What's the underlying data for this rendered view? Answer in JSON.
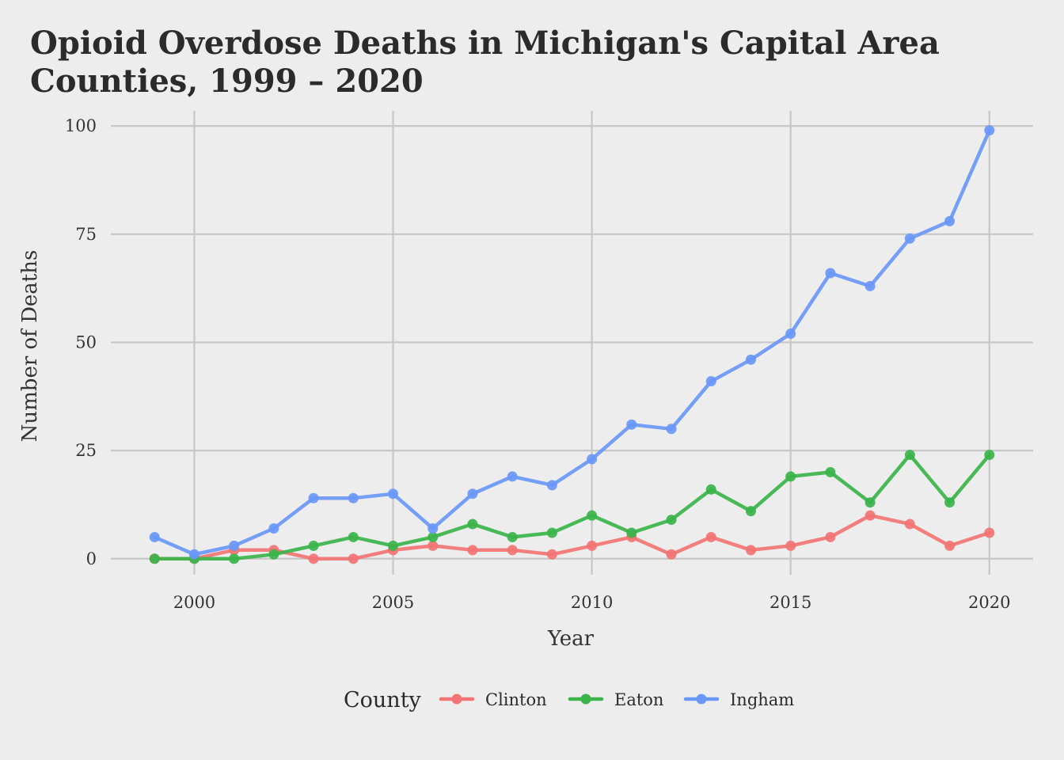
{
  "chart_data": {
    "type": "line",
    "title_lines": [
      "Opioid Overdose Deaths in Michigan's Capital Area",
      "Counties, 1999 – 2020"
    ],
    "xlabel": "Year",
    "ylabel": "Number of Deaths",
    "x": [
      1999,
      2000,
      2001,
      2002,
      2003,
      2004,
      2005,
      2006,
      2007,
      2008,
      2009,
      2010,
      2011,
      2012,
      2013,
      2014,
      2015,
      2016,
      2017,
      2018,
      2019,
      2020
    ],
    "xlim": [
      1997.9,
      2021.1
    ],
    "ylim": [
      -3.7,
      103.5
    ],
    "x_ticks": [
      2000,
      2005,
      2010,
      2015,
      2020
    ],
    "x_tick_labels": [
      "2000",
      "2005",
      "2010",
      "2015",
      "2020"
    ],
    "y_ticks": [
      0,
      25,
      50,
      75,
      100
    ],
    "y_tick_labels": [
      "0",
      "25",
      "50",
      "75",
      "100"
    ],
    "grid": true,
    "legend": {
      "title": "County",
      "position": "bottom"
    },
    "series": [
      {
        "name": "Clinton",
        "color": "#f27474",
        "values": [
          0,
          0,
          2,
          2,
          0,
          0,
          2,
          3,
          2,
          2,
          1,
          3,
          5,
          1,
          5,
          2,
          3,
          5,
          10,
          8,
          3,
          6
        ]
      },
      {
        "name": "Eaton",
        "color": "#3bb44a",
        "values": [
          0,
          0,
          0,
          1,
          3,
          5,
          3,
          5,
          8,
          5,
          6,
          10,
          6,
          9,
          16,
          11,
          19,
          20,
          13,
          24,
          13,
          24
        ]
      },
      {
        "name": "Ingham",
        "color": "#6a97f7",
        "values": [
          5,
          1,
          3,
          7,
          14,
          14,
          15,
          7,
          15,
          19,
          17,
          23,
          31,
          30,
          41,
          46,
          52,
          66,
          63,
          74,
          78,
          99
        ]
      }
    ]
  }
}
